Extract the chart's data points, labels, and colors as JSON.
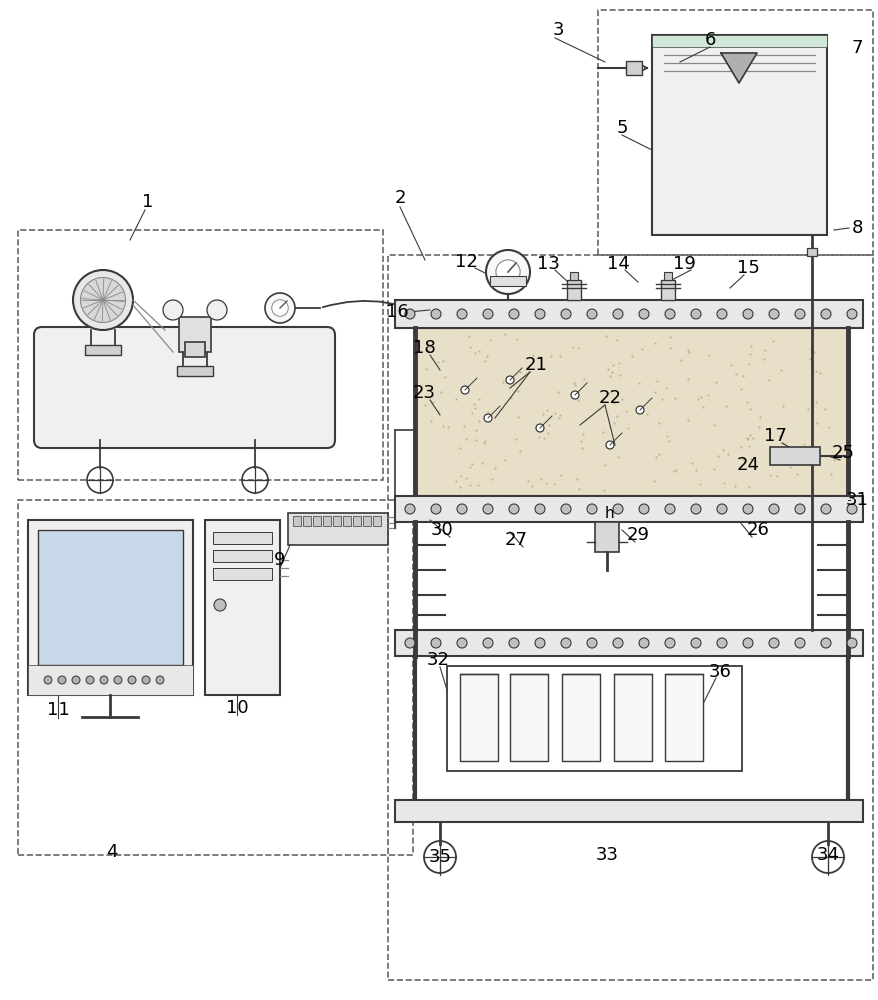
{
  "bg_color": "#ffffff",
  "line_color": "#3a3a3a",
  "mid_gray": "#888888",
  "dark_gray": "#555555",
  "box_fill": "#f5f5f5",
  "sand_color": "#e8dfc8",
  "dashed_color": "#666666",
  "label_fs": 13,
  "fig_width": 8.79,
  "fig_height": 10.0,
  "dpi": 100
}
